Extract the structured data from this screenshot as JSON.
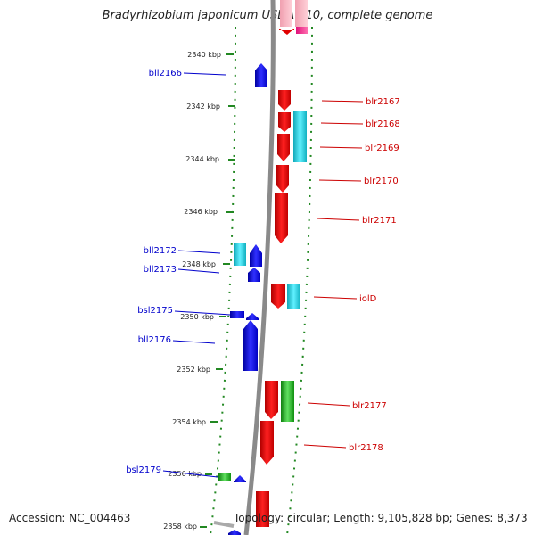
{
  "title": "Bradyrhizobium japonicum USDA 110, complete genome",
  "accession": "Accession: NC_004463",
  "summary": "Topology: circular; Length: 9,105,828 bp; Genes: 8,373",
  "colors": {
    "minus_strand_genes": "#1010e0",
    "plus_strand_genes": "#e00000",
    "label_minus": "#0000cc",
    "label_plus": "#cc0000",
    "cyan_feature": "#20c8d8",
    "green_feature": "#30c030",
    "pink_feature": "#ff6090",
    "backbone": "#888888",
    "tick_dots": "#228822"
  },
  "scale_labels": [
    "2340 kbp",
    "2342 kbp",
    "2344 kbp",
    "2346 kbp",
    "2348 kbp",
    "2350 kbp",
    "2352 kbp",
    "2354 kbp",
    "2356 kbp",
    "2358 kbp"
  ],
  "genes_left": [
    "bll2166",
    "bll2172",
    "bll2173",
    "bsl2175",
    "bll2176",
    "bsl2179"
  ],
  "genes_right": [
    "blr2167",
    "blr2168",
    "blr2169",
    "blr2170",
    "blr2171",
    "iolD",
    "blr2177",
    "blr2178"
  ]
}
